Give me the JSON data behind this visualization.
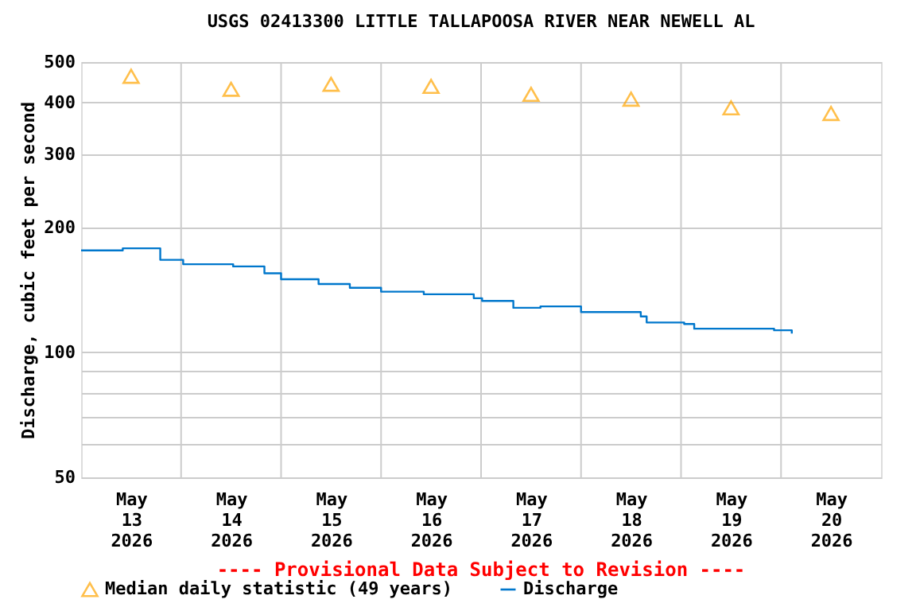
{
  "chart_data": {
    "type": "step",
    "title": "USGS 02413300 LITTLE TALLAPOOSA RIVER NEAR NEWELL AL",
    "ylabel": "Discharge, cubic feet per second",
    "annotations": [
      "---- Provisional Data Subject to Revision ----"
    ],
    "log": "y",
    "grid": true,
    "legend": "bottom left",
    "ylim": [
      50,
      500
    ],
    "yticks": [
      50,
      {
        "value": 60,
        "label": null
      },
      {
        "value": 70,
        "label": null
      },
      {
        "value": 80,
        "label": null
      },
      {
        "value": 90,
        "label": null
      },
      100,
      200,
      300,
      400,
      500
    ],
    "xlim": [
      "2026-05-13T00:00",
      "2026-05-21T00:00"
    ],
    "xticks": [
      {
        "value": "2026-05-13T12:00",
        "label": "May\n13\n2026"
      },
      {
        "value": "2026-05-14T00:00",
        "label": null
      },
      {
        "value": "2026-05-14T12:00",
        "label": "May\n14\n2026"
      },
      {
        "value": "2026-05-15T00:00",
        "label": null
      },
      {
        "value": "2026-05-15T12:00",
        "label": "May\n15\n2026"
      },
      {
        "value": "2026-05-16T00:00",
        "label": null
      },
      {
        "value": "2026-05-16T12:00",
        "label": "May\n16\n2026"
      },
      {
        "value": "2026-05-17T00:00",
        "label": null
      },
      {
        "value": "2026-05-17T12:00",
        "label": "May\n17\n2026"
      },
      {
        "value": "2026-05-18T00:00",
        "label": null
      },
      {
        "value": "2026-05-18T12:00",
        "label": "May\n18\n2026"
      },
      {
        "value": "2026-05-19T00:00",
        "label": null
      },
      {
        "value": "2026-05-19T12:00",
        "label": "May\n19\n2026"
      },
      {
        "value": "2026-05-20T00:00",
        "label": null
      },
      {
        "value": "2026-05-20T12:00",
        "label": "May\n20\n2026"
      }
    ],
    "series": [
      {
        "name": "Median daily statistic (49 years)",
        "type": "scatter",
        "marker": "triangle",
        "color": "#ffa500",
        "x": [
          "2026-05-13T12:00",
          "2026-05-14T12:00",
          "2026-05-15T12:00",
          "2026-05-16T12:00",
          "2026-05-17T12:00",
          "2026-05-18T12:00",
          "2026-05-19T12:00",
          "2026-05-20T12:00"
        ],
        "values": [
          462,
          430,
          442,
          437,
          418,
          407,
          388,
          376
        ]
      },
      {
        "name": "Discharge",
        "color": "#0077cc",
        "x": [
          "2026-05-13T00:00",
          "2026-05-13T10:00",
          "2026-05-13T19:00",
          "2026-05-14T00:30",
          "2026-05-14T12:30",
          "2026-05-14T20:00",
          "2026-05-15T00:00",
          "2026-05-15T09:00",
          "2026-05-15T16:30",
          "2026-05-16T00:00",
          "2026-05-16T10:15",
          "2026-05-16T15:20",
          "2026-05-16T22:15",
          "2026-05-17T00:15",
          "2026-05-17T07:45",
          "2026-05-17T14:15",
          "2026-05-18T00:00",
          "2026-05-18T14:20",
          "2026-05-18T15:45",
          "2026-05-19T00:45",
          "2026-05-19T03:10",
          "2026-05-19T13:10",
          "2026-05-19T22:20",
          "2026-05-20T02:35"
        ],
        "values": [
          176,
          178,
          167,
          163,
          161,
          155,
          150,
          146,
          143,
          140,
          138,
          138,
          135,
          133,
          128,
          129,
          125,
          122,
          118,
          117,
          114,
          114,
          113,
          111
        ]
      }
    ]
  }
}
